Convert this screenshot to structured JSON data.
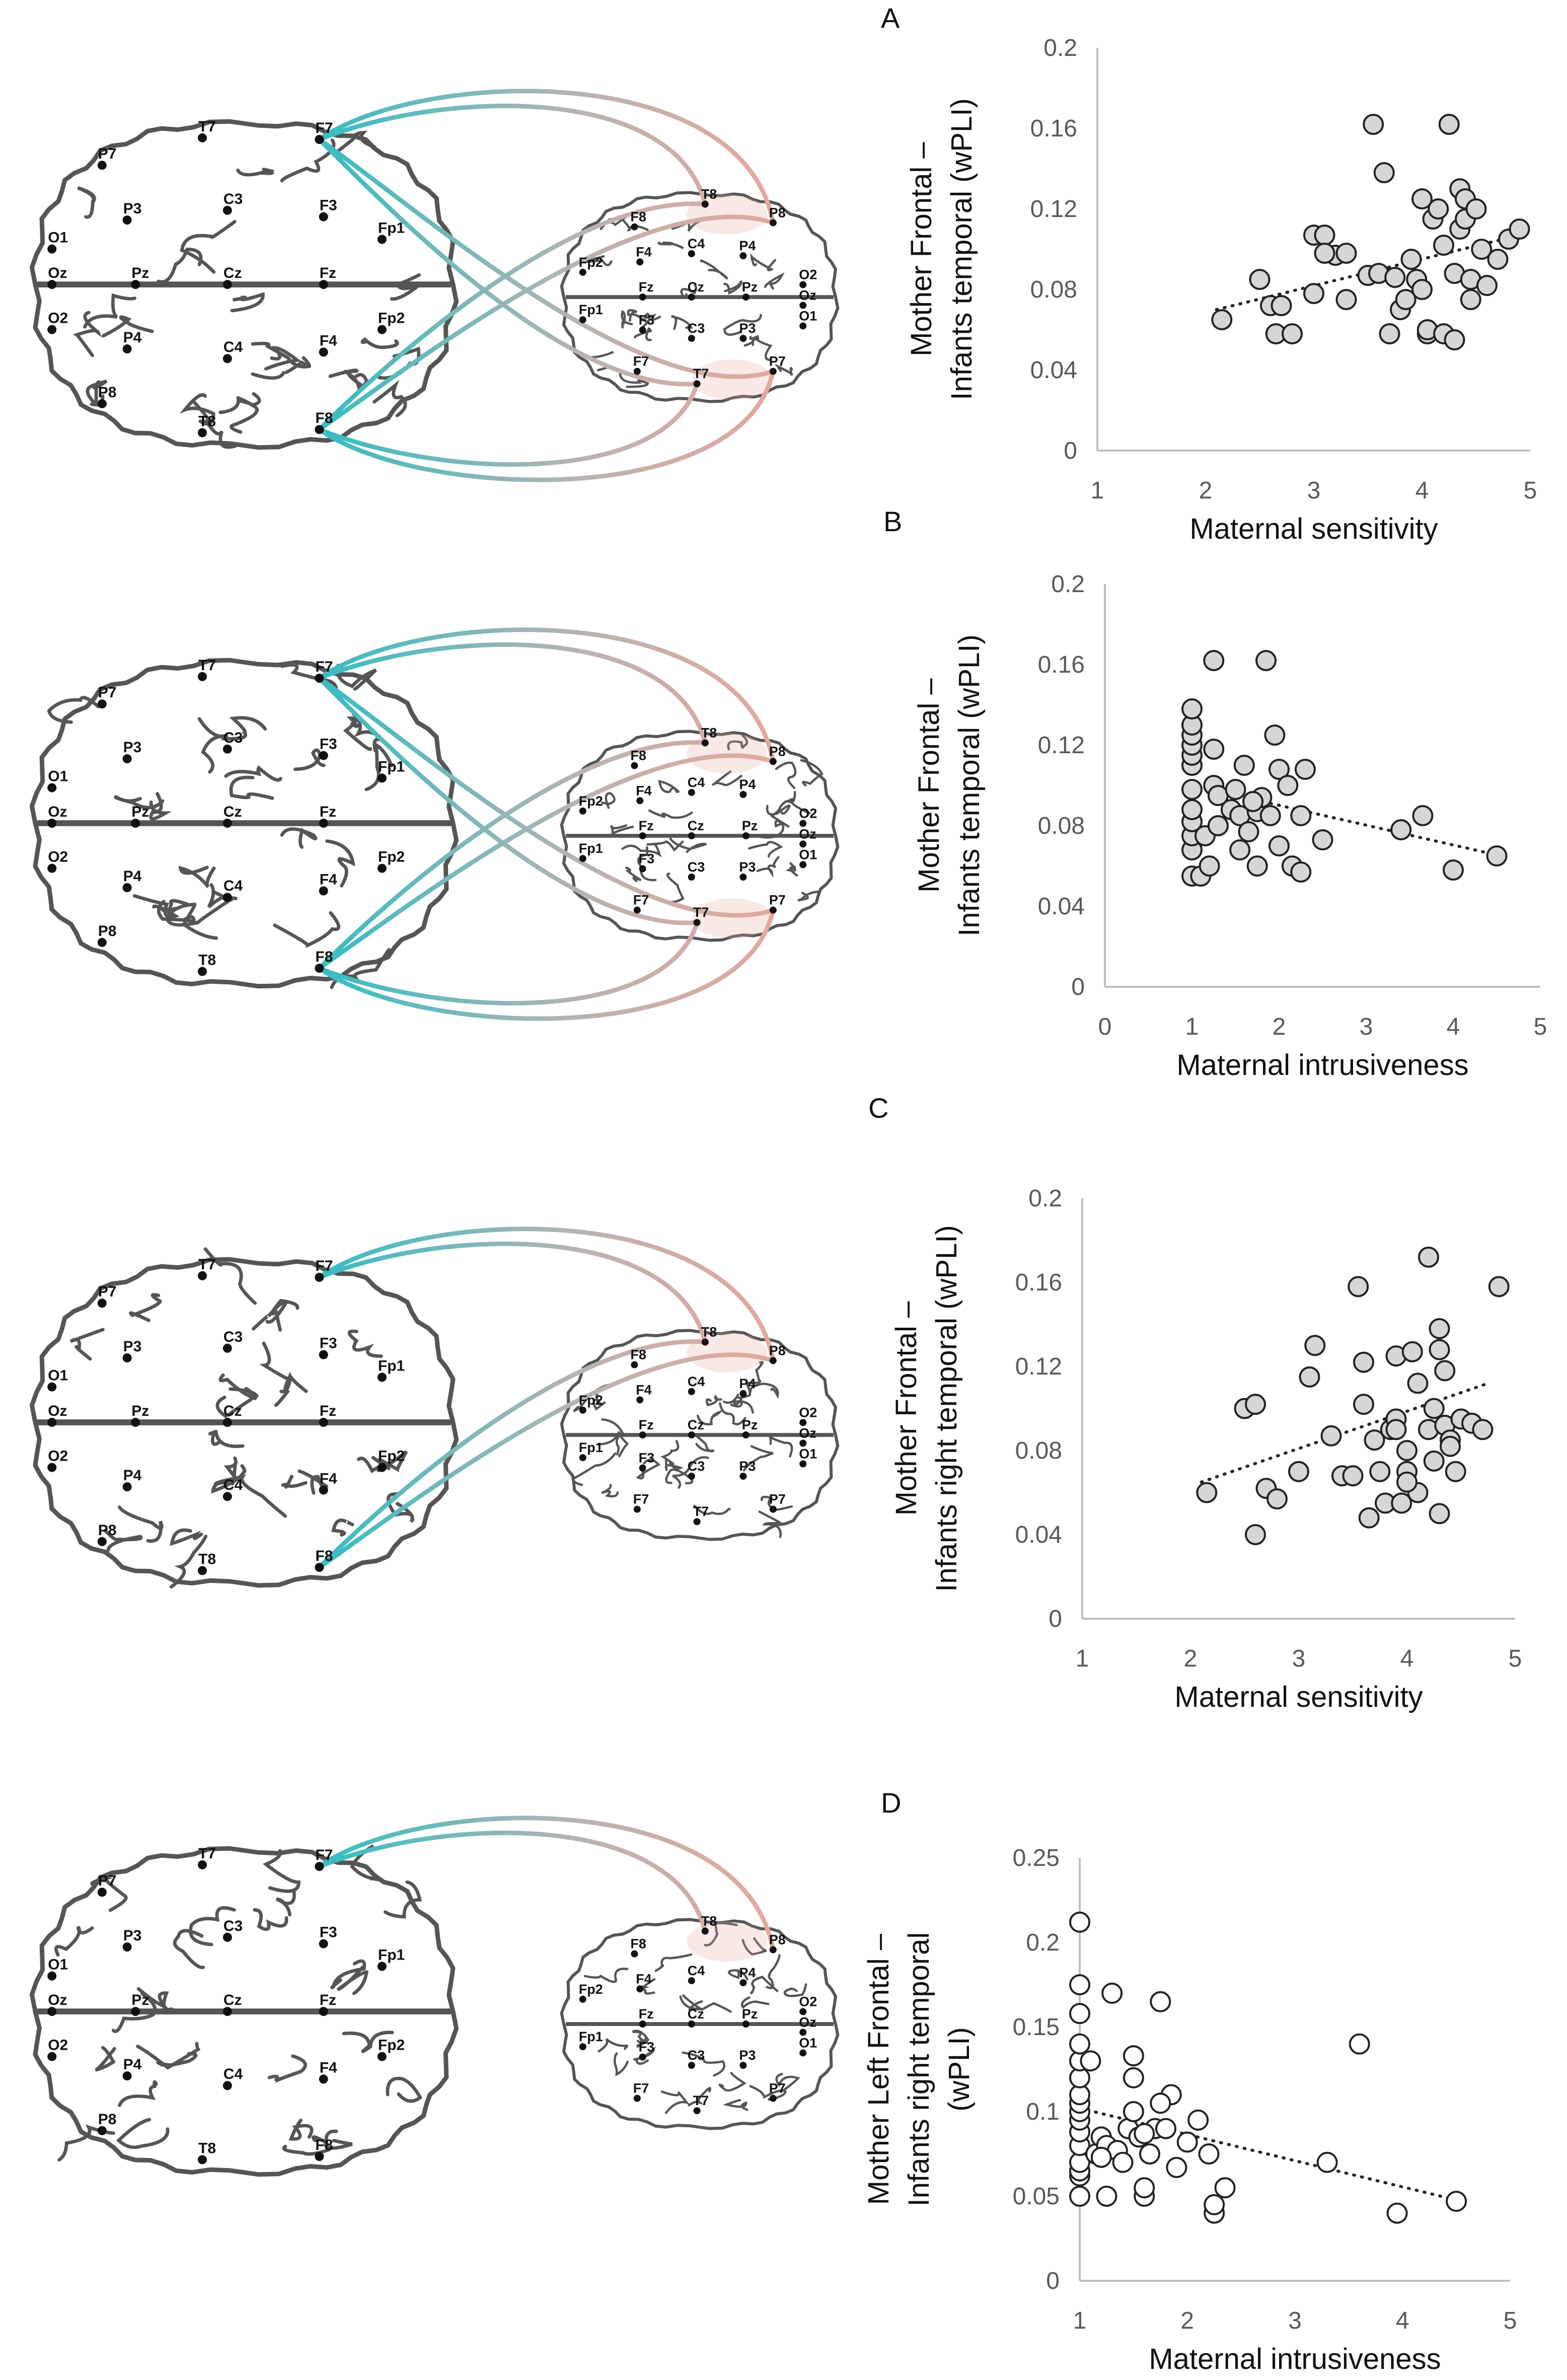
{
  "colors": {
    "teal": "#3fbcc1",
    "salmon": "#e8a79c",
    "gray_connector": "#b9b3b1",
    "highlight": "#bfeef0",
    "brain_outline": "#555555",
    "point_fill_gray": "#d6d6d6",
    "point_fill_white": "#ffffff",
    "axis": "#bfbfbf"
  },
  "electrodes": {
    "mother": [
      "T7",
      "P7",
      "P3",
      "O1",
      "Oz",
      "O2",
      "P4",
      "P8",
      "T8",
      "C3",
      "Pz",
      "Cz",
      "C4",
      "F7",
      "F3",
      "Fz",
      "F4",
      "F8",
      "Fp1",
      "Fp2"
    ],
    "infant": [
      "T8",
      "P8",
      "F8",
      "C4",
      "P4",
      "Fp2",
      "F4",
      "Fz",
      "Cz",
      "Pz",
      "O2",
      "Oz",
      "O1",
      "Fp1",
      "F3",
      "C3",
      "P3",
      "F7",
      "T7",
      "P7"
    ]
  },
  "chart_data": [
    {
      "panel": "A",
      "type": "scatter",
      "xlabel": "Maternal sensitivity",
      "ylabel": [
        "Mother Frontal –",
        "Infants temporal (wPLI)"
      ],
      "xlim": [
        1,
        5
      ],
      "ylim": [
        0,
        0.2
      ],
      "xticks": [
        "1",
        "2",
        "3",
        "4",
        "5"
      ],
      "yticks": [
        "0",
        "0.04",
        "0.08",
        "0.12",
        "0.16",
        "0.2"
      ],
      "marker": "gray",
      "trendline": {
        "style": "dotted",
        "from": [
          2.1,
          0.07
        ],
        "to": [
          4.75,
          0.105
        ]
      },
      "points": [
        [
          2.15,
          0.065
        ],
        [
          2.5,
          0.085
        ],
        [
          2.6,
          0.072
        ],
        [
          2.65,
          0.058
        ],
        [
          2.7,
          0.072
        ],
        [
          2.8,
          0.058
        ],
        [
          3.0,
          0.078
        ],
        [
          3.0,
          0.107
        ],
        [
          3.1,
          0.107
        ],
        [
          3.2,
          0.097
        ],
        [
          3.3,
          0.098
        ],
        [
          3.3,
          0.075
        ],
        [
          3.5,
          0.087
        ],
        [
          3.55,
          0.162
        ],
        [
          3.6,
          0.088
        ],
        [
          3.65,
          0.138
        ],
        [
          3.7,
          0.058
        ],
        [
          3.75,
          0.086
        ],
        [
          3.8,
          0.07
        ],
        [
          3.85,
          0.075
        ],
        [
          3.9,
          0.095
        ],
        [
          3.95,
          0.085
        ],
        [
          4.0,
          0.08
        ],
        [
          4.0,
          0.125
        ],
        [
          4.05,
          0.058
        ],
        [
          4.05,
          0.06
        ],
        [
          4.1,
          0.115
        ],
        [
          4.15,
          0.12
        ],
        [
          4.2,
          0.058
        ],
        [
          4.2,
          0.102
        ],
        [
          4.25,
          0.162
        ],
        [
          4.3,
          0.088
        ],
        [
          4.35,
          0.11
        ],
        [
          4.35,
          0.13
        ],
        [
          4.4,
          0.115
        ],
        [
          4.4,
          0.125
        ],
        [
          4.45,
          0.075
        ],
        [
          4.45,
          0.085
        ],
        [
          4.5,
          0.12
        ],
        [
          4.55,
          0.1
        ],
        [
          4.6,
          0.082
        ],
        [
          4.7,
          0.095
        ],
        [
          4.8,
          0.105
        ],
        [
          4.9,
          0.11
        ],
        [
          4.3,
          0.055
        ],
        [
          3.1,
          0.098
        ]
      ]
    },
    {
      "panel": "B",
      "type": "scatter",
      "xlabel": "Maternal intrusiveness",
      "ylabel": [
        "Mother Frontal –",
        "Infants temporal (wPLI)"
      ],
      "xlim": [
        0,
        5
      ],
      "ylim": [
        0,
        0.2
      ],
      "xticks": [
        "0",
        "1",
        "2",
        "3",
        "4",
        "5"
      ],
      "yticks": [
        "0",
        "0.04",
        "0.08",
        "0.12",
        "0.16",
        "0.2"
      ],
      "marker": "gray",
      "trendline": {
        "style": "dotted",
        "from": [
          1.0,
          0.1
        ],
        "to": [
          4.55,
          0.065
        ]
      },
      "points": [
        [
          1,
          0.055
        ],
        [
          1,
          0.068
        ],
        [
          1,
          0.075
        ],
        [
          1,
          0.082
        ],
        [
          1,
          0.088
        ],
        [
          1,
          0.098
        ],
        [
          1,
          0.11
        ],
        [
          1,
          0.115
        ],
        [
          1,
          0.12
        ],
        [
          1,
          0.125
        ],
        [
          1,
          0.13
        ],
        [
          1,
          0.138
        ],
        [
          1.1,
          0.055
        ],
        [
          1.15,
          0.075
        ],
        [
          1.2,
          0.06
        ],
        [
          1.25,
          0.1
        ],
        [
          1.25,
          0.118
        ],
        [
          1.25,
          0.162
        ],
        [
          1.3,
          0.095
        ],
        [
          1.3,
          0.08
        ],
        [
          1.45,
          0.088
        ],
        [
          1.5,
          0.098
        ],
        [
          1.55,
          0.085
        ],
        [
          1.6,
          0.11
        ],
        [
          1.65,
          0.077
        ],
        [
          1.7,
          0.092
        ],
        [
          1.75,
          0.087
        ],
        [
          1.8,
          0.094
        ],
        [
          1.75,
          0.06
        ],
        [
          1.85,
          0.162
        ],
        [
          1.9,
          0.085
        ],
        [
          1.95,
          0.125
        ],
        [
          2.0,
          0.07
        ],
        [
          2.0,
          0.108
        ],
        [
          2.1,
          0.1
        ],
        [
          2.15,
          0.06
        ],
        [
          2.25,
          0.057
        ],
        [
          2.25,
          0.085
        ],
        [
          2.3,
          0.108
        ],
        [
          2.5,
          0.073
        ],
        [
          3.4,
          0.078
        ],
        [
          3.65,
          0.085
        ],
        [
          4.0,
          0.058
        ],
        [
          4.5,
          0.065
        ],
        [
          1.55,
          0.068
        ],
        [
          1.7,
          0.092
        ]
      ]
    },
    {
      "panel": "C",
      "type": "scatter",
      "xlabel": "Maternal sensitivity",
      "ylabel": [
        "Mother Frontal –",
        "Infants right temporal (wPLI)"
      ],
      "xlim": [
        1,
        5
      ],
      "ylim": [
        0,
        0.2
      ],
      "xticks": [
        "1",
        "2",
        "3",
        "4",
        "5"
      ],
      "yticks": [
        "0",
        "0.04",
        "0.08",
        "0.12",
        "0.16",
        "0.2"
      ],
      "marker": "gray",
      "trendline": {
        "style": "dotted",
        "from": [
          2.1,
          0.065
        ],
        "to": [
          4.75,
          0.112
        ]
      },
      "points": [
        [
          2.15,
          0.06
        ],
        [
          2.5,
          0.1
        ],
        [
          2.6,
          0.102
        ],
        [
          2.6,
          0.04
        ],
        [
          2.7,
          0.062
        ],
        [
          2.8,
          0.057
        ],
        [
          3.0,
          0.07
        ],
        [
          3.1,
          0.115
        ],
        [
          3.15,
          0.13
        ],
        [
          3.3,
          0.087
        ],
        [
          3.4,
          0.068
        ],
        [
          3.5,
          0.068
        ],
        [
          3.55,
          0.158
        ],
        [
          3.6,
          0.122
        ],
        [
          3.6,
          0.102
        ],
        [
          3.65,
          0.048
        ],
        [
          3.7,
          0.085
        ],
        [
          3.75,
          0.07
        ],
        [
          3.8,
          0.055
        ],
        [
          3.85,
          0.09
        ],
        [
          3.9,
          0.125
        ],
        [
          3.9,
          0.095
        ],
        [
          3.95,
          0.055
        ],
        [
          4.0,
          0.08
        ],
        [
          4.0,
          0.07
        ],
        [
          4.05,
          0.127
        ],
        [
          4.1,
          0.112
        ],
        [
          4.1,
          0.06
        ],
        [
          4.2,
          0.09
        ],
        [
          4.2,
          0.172
        ],
        [
          4.25,
          0.075
        ],
        [
          4.25,
          0.1
        ],
        [
          4.3,
          0.138
        ],
        [
          4.3,
          0.128
        ],
        [
          4.35,
          0.118
        ],
        [
          4.35,
          0.092
        ],
        [
          4.4,
          0.085
        ],
        [
          4.4,
          0.082
        ],
        [
          4.45,
          0.07
        ],
        [
          4.5,
          0.095
        ],
        [
          4.6,
          0.093
        ],
        [
          4.7,
          0.09
        ],
        [
          4.85,
          0.158
        ],
        [
          4.0,
          0.065
        ],
        [
          4.3,
          0.05
        ],
        [
          3.9,
          0.09
        ]
      ]
    },
    {
      "panel": "D",
      "type": "scatter",
      "xlabel": "Maternal intrusiveness",
      "ylabel": [
        "Mother Left Frontal –",
        "Infants right temporal",
        "(wPLI)"
      ],
      "xlim": [
        1,
        5
      ],
      "ylim": [
        0,
        0.25
      ],
      "xticks": [
        "1",
        "2",
        "3",
        "4",
        "5"
      ],
      "yticks": [
        "0",
        "0.05",
        "0.1",
        "0.15",
        "0.2",
        "0.25"
      ],
      "marker": "white",
      "trendline": {
        "style": "dotted",
        "from": [
          1.0,
          0.102
        ],
        "to": [
          4.55,
          0.047
        ]
      },
      "points": [
        [
          1,
          0.05
        ],
        [
          1,
          0.062
        ],
        [
          1,
          0.065
        ],
        [
          1,
          0.07
        ],
        [
          1,
          0.08
        ],
        [
          1,
          0.088
        ],
        [
          1,
          0.095
        ],
        [
          1,
          0.1
        ],
        [
          1,
          0.105
        ],
        [
          1,
          0.11
        ],
        [
          1,
          0.12
        ],
        [
          1,
          0.13
        ],
        [
          1,
          0.14
        ],
        [
          1,
          0.158
        ],
        [
          1,
          0.175
        ],
        [
          1,
          0.212
        ],
        [
          1.1,
          0.13
        ],
        [
          1.15,
          0.075
        ],
        [
          1.2,
          0.085
        ],
        [
          1.25,
          0.05
        ],
        [
          1.25,
          0.08
        ],
        [
          1.3,
          0.17
        ],
        [
          1.35,
          0.077
        ],
        [
          1.4,
          0.07
        ],
        [
          1.45,
          0.09
        ],
        [
          1.5,
          0.1
        ],
        [
          1.5,
          0.12
        ],
        [
          1.5,
          0.133
        ],
        [
          1.55,
          0.085
        ],
        [
          1.6,
          0.05
        ],
        [
          1.6,
          0.055
        ],
        [
          1.65,
          0.075
        ],
        [
          1.7,
          0.09
        ],
        [
          1.75,
          0.165
        ],
        [
          1.8,
          0.09
        ],
        [
          1.85,
          0.11
        ],
        [
          1.9,
          0.067
        ],
        [
          2.0,
          0.082
        ],
        [
          2.1,
          0.095
        ],
        [
          2.2,
          0.075
        ],
        [
          2.25,
          0.04
        ],
        [
          2.25,
          0.045
        ],
        [
          2.35,
          0.055
        ],
        [
          3.3,
          0.07
        ],
        [
          3.6,
          0.14
        ],
        [
          3.95,
          0.04
        ],
        [
          4.5,
          0.047
        ],
        [
          1.75,
          0.105
        ],
        [
          1.6,
          0.087
        ],
        [
          1.2,
          0.073
        ]
      ]
    }
  ]
}
